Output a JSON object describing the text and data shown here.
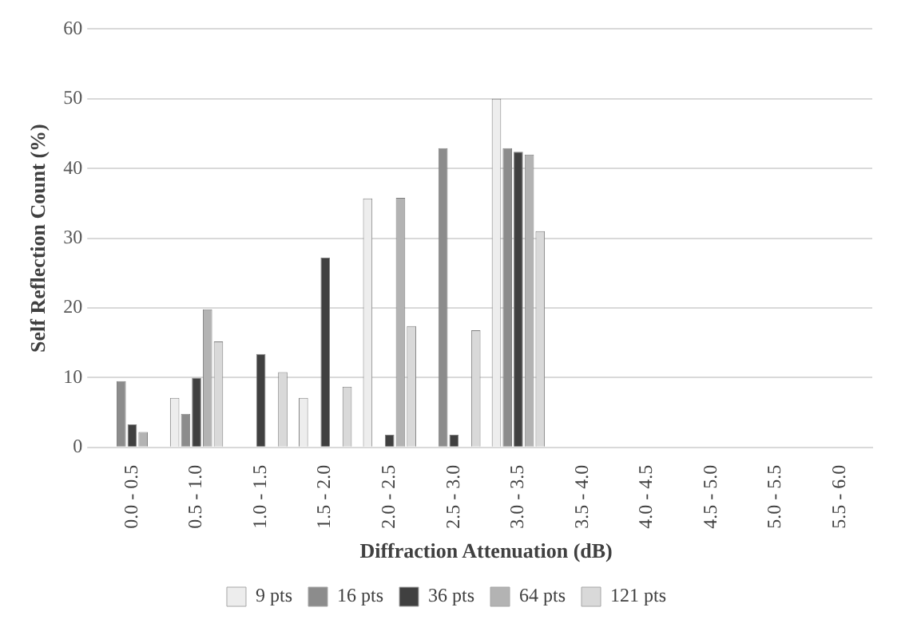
{
  "chart_data": {
    "type": "bar",
    "xlabel": "Diffraction Attenuation (dB)",
    "ylabel": "Self Reflection Count (%)",
    "categories": [
      "0.0 - 0.5",
      "0.5 - 1.0",
      "1.0 - 1.5",
      "1.5 - 2.0",
      "2.0 - 2.5",
      "2.5 - 3.0",
      "3.0 - 3.5",
      "3.5 - 4.0",
      "4.0 - 4.5",
      "4.5 - 5.0",
      "5.0 - 5.5",
      "5.5 - 6.0"
    ],
    "series": [
      {
        "name": "9 pts",
        "color": "#ededed",
        "values": [
          0,
          7.1,
          0,
          7.1,
          35.7,
          0,
          50,
          0,
          0,
          0,
          0,
          0
        ]
      },
      {
        "name": "16 pts",
        "color": "#8c8c8c",
        "values": [
          9.5,
          4.8,
          0,
          0,
          0,
          42.9,
          42.9,
          0,
          0,
          0,
          0,
          0
        ]
      },
      {
        "name": "36 pts",
        "color": "#404040",
        "values": [
          3.3,
          10,
          13.4,
          27.2,
          1.8,
          1.8,
          42.4,
          0,
          0,
          0,
          0,
          0
        ]
      },
      {
        "name": "64 pts",
        "color": "#b3b3b3",
        "values": [
          2.2,
          19.8,
          0,
          0,
          35.8,
          0,
          42,
          0,
          0,
          0,
          0,
          0
        ]
      },
      {
        "name": "121 pts",
        "color": "#d9d9d9",
        "values": [
          0,
          15.2,
          10.8,
          8.7,
          17.4,
          16.8,
          31,
          0,
          0,
          0,
          0,
          0
        ]
      }
    ],
    "ylim": [
      0,
      60
    ],
    "yticks": [
      0,
      10,
      20,
      30,
      40,
      50,
      60
    ],
    "grid": "y",
    "legend": "bottom"
  }
}
